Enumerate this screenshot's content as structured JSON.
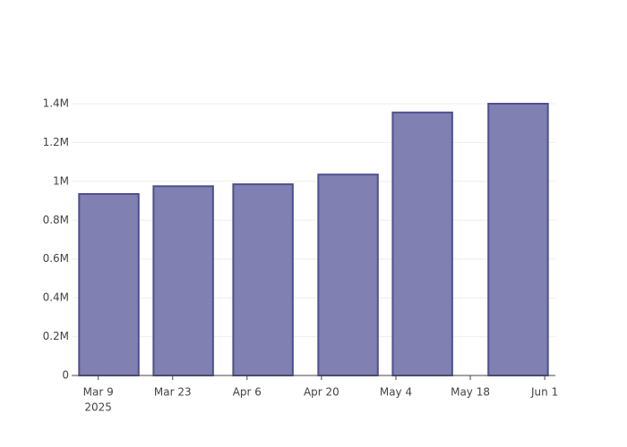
{
  "chart_data": {
    "type": "bar",
    "x": [
      "2025-03-11",
      "2025-03-25",
      "2025-04-09",
      "2025-04-25",
      "2025-05-09",
      "2025-05-27"
    ],
    "values": [
      935000,
      975000,
      985000,
      1035000,
      1355000,
      1400000
    ],
    "color": "#8080b3",
    "edge_color": "#4f4f8f",
    "xlim": [
      "2025-03-04",
      "2025-06-03"
    ],
    "xticks": [
      {
        "value": "2025-03-09",
        "label": "Mar 9"
      },
      {
        "value": "2025-03-23",
        "label": "Mar 23"
      },
      {
        "value": "2025-04-06",
        "label": "Apr 6"
      },
      {
        "value": "2025-04-20",
        "label": "Apr 20"
      },
      {
        "value": "2025-05-04",
        "label": "May 4"
      },
      {
        "value": "2025-05-18",
        "label": "May 18"
      },
      {
        "value": "2025-06-01",
        "label": "Jun 1"
      }
    ],
    "xtick_year": "2025",
    "ylim": [
      0,
      1473700
    ],
    "yticks": [
      0,
      {
        "value": 200000,
        "label": "0.2M"
      },
      {
        "value": 400000,
        "label": "0.4M"
      },
      {
        "value": 600000,
        "label": "0.6M"
      },
      {
        "value": 800000,
        "label": "0.8M"
      },
      {
        "value": 1000000,
        "label": "1M"
      },
      {
        "value": 1200000,
        "label": "1.2M"
      },
      {
        "value": 1400000,
        "label": "1.4M"
      }
    ],
    "grid": true
  }
}
